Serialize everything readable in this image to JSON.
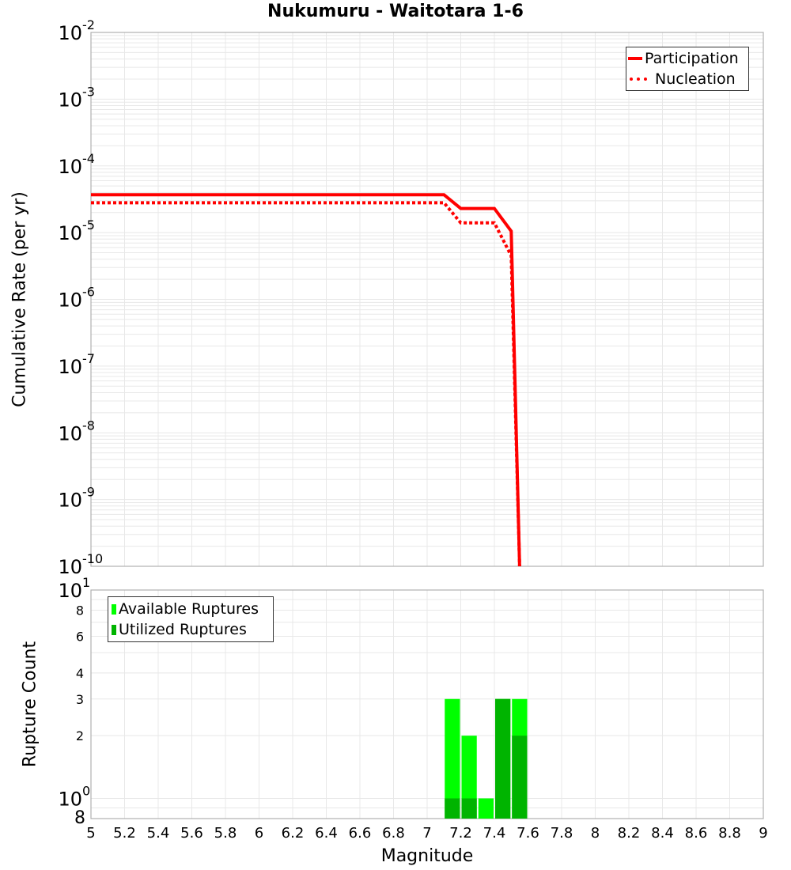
{
  "chart_data": [
    {
      "type": "line",
      "title": "Nukumuru - Waitotara 1-6",
      "xlabel": "Magnitude",
      "ylabel": "Cumulative Rate (per yr)",
      "yscale": "log",
      "xlim": [
        5,
        9
      ],
      "ylim": [
        1e-10,
        0.01
      ],
      "yticks": [
        "10^-2",
        "10^-3",
        "10^-4",
        "10^-5",
        "10^-6",
        "10^-7",
        "10^-8",
        "10^-9",
        "10^-10"
      ],
      "grid": true,
      "legend_position": "upper right",
      "series": [
        {
          "name": "Participation",
          "style": "solid",
          "color": "#ff0000",
          "x": [
            5.0,
            7.1,
            7.2,
            7.4,
            7.5,
            7.55
          ],
          "y": [
            3.7e-05,
            3.7e-05,
            2.3e-05,
            2.3e-05,
            1.05e-05,
            1e-10
          ]
        },
        {
          "name": "Nucleation",
          "style": "dotted",
          "color": "#ff0000",
          "x": [
            5.0,
            7.1,
            7.2,
            7.4,
            7.5,
            7.55
          ],
          "y": [
            2.8e-05,
            2.8e-05,
            1.4e-05,
            1.4e-05,
            4.5e-06,
            1e-10
          ]
        }
      ]
    },
    {
      "type": "bar",
      "xlabel": "Magnitude",
      "ylabel": "Rupture Count",
      "yscale": "log",
      "xlim": [
        5,
        9
      ],
      "ylim": [
        0.8,
        10
      ],
      "yticks": [
        "8",
        "10^0",
        "2",
        "3",
        "4",
        "6",
        "8",
        "10^1"
      ],
      "xticks": [
        "5",
        "5.2",
        "5.4",
        "5.6",
        "5.8",
        "6",
        "6.2",
        "6.4",
        "6.6",
        "6.8",
        "7",
        "7.2",
        "7.4",
        "7.6",
        "7.8",
        "8",
        "8.2",
        "8.4",
        "8.6",
        "8.8",
        "9"
      ],
      "grid": true,
      "legend_position": "upper left",
      "categories": [
        7.15,
        7.25,
        7.35,
        7.45,
        7.55
      ],
      "series": [
        {
          "name": "Available Ruptures",
          "color": "#00ff00",
          "values": [
            3,
            2,
            1,
            3,
            3
          ]
        },
        {
          "name": "Utilized Ruptures",
          "color": "#00b400",
          "values": [
            1,
            1,
            0,
            3,
            2
          ]
        }
      ]
    }
  ],
  "labels": {
    "title": "Nukumuru - Waitotara 1-6",
    "top_ylabel": "Cumulative Rate (per yr)",
    "bottom_ylabel": "Rupture Count",
    "xlabel": "Magnitude",
    "legend_top": [
      "Participation",
      "Nucleation"
    ],
    "legend_bottom": [
      "Available Ruptures",
      "Utilized Ruptures"
    ]
  }
}
